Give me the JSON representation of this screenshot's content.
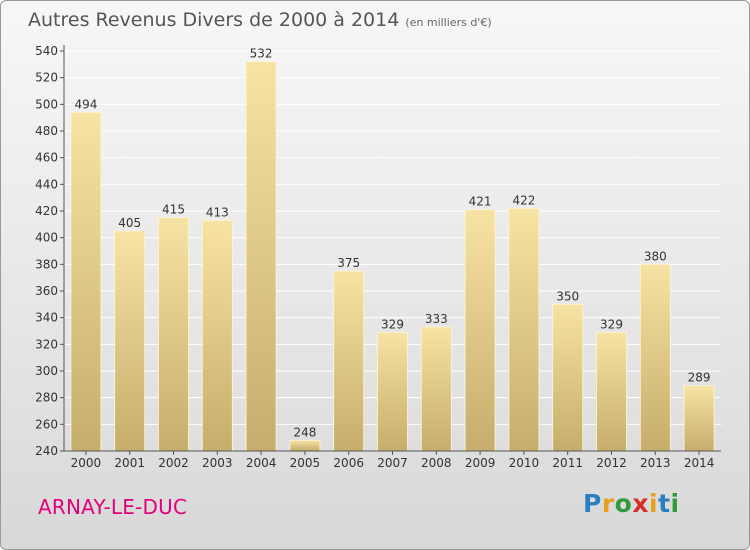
{
  "title": "Autres Revenus Divers de 2000 à 2014",
  "subtitle": "(en milliers d'€)",
  "city": "ARNAY-LE-DUC",
  "logo": {
    "text": "Proxiti",
    "letter_colors": [
      "#2a7fc0",
      "#e8a020",
      "#2f9a3a",
      "#d62d2d",
      "#e8a020",
      "#2a7fc0",
      "#2f9a3a"
    ]
  },
  "colors": {
    "bar_light": "#f7e3a3",
    "bar_dark": "#c6ad6b",
    "axis": "#555555",
    "grid": "#ffffff",
    "city": "#e3007a"
  },
  "chart_data": {
    "type": "bar",
    "categories": [
      "2000",
      "2001",
      "2002",
      "2003",
      "2004",
      "2005",
      "2006",
      "2007",
      "2008",
      "2009",
      "2010",
      "2011",
      "2012",
      "2013",
      "2014"
    ],
    "values": [
      494,
      405,
      415,
      413,
      532,
      248,
      375,
      329,
      333,
      421,
      422,
      350,
      329,
      380,
      289
    ],
    "ylim": [
      240,
      540
    ],
    "yticks": [
      240,
      260,
      280,
      300,
      320,
      340,
      360,
      380,
      400,
      420,
      440,
      460,
      480,
      500,
      520,
      540
    ],
    "grid": true,
    "data_labels": true
  }
}
